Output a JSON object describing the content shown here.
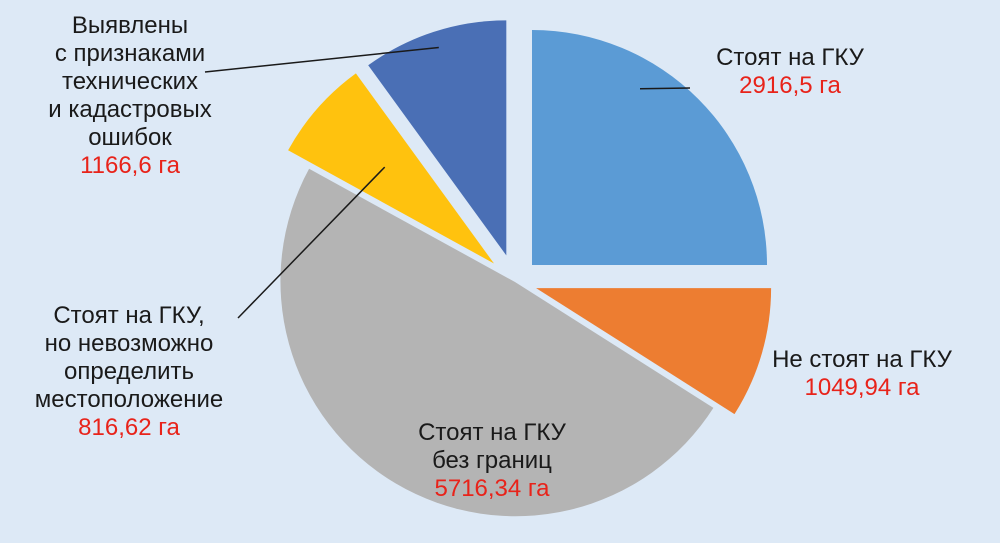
{
  "chart_data": {
    "type": "pie",
    "title": "",
    "exploded": true,
    "slices": [
      {
        "name": "Стоят на ГКУ",
        "label_lines": [
          "Стоят на ГКУ"
        ],
        "value": 2916.5,
        "value_label": "2916,5 га",
        "color": "#5b9bd5"
      },
      {
        "name": "Не стоят на ГКУ",
        "label_lines": [
          "Не стоят на ГКУ"
        ],
        "value": 1049.94,
        "value_label": "1049,94 га",
        "color": "#ed7d31"
      },
      {
        "name": "Стоят на ГКУ без границ",
        "label_lines": [
          "Стоят на ГКУ",
          "без границ"
        ],
        "value": 5716.34,
        "value_label": "5716,34 га",
        "color": "#b4b4b4"
      },
      {
        "name": "Стоят на ГКУ, но невозможно определить местоположение",
        "label_lines": [
          "Стоят на ГКУ,",
          "но невозможно",
          "определить",
          "местоположение"
        ],
        "value": 816.62,
        "value_label": "816,62 га",
        "color": "#ffc20e"
      },
      {
        "name": "Выявлены с признаками технических и кадастровых ошибок",
        "label_lines": [
          "Выявлены",
          "с признаками",
          "технических",
          "и кадастровых",
          "ошибок"
        ],
        "value": 1166.6,
        "value_label": "1166,6 га",
        "color": "#4a6fb5"
      }
    ]
  }
}
